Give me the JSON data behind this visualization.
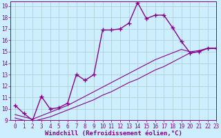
{
  "background_color": "#cceeff",
  "grid_color": "#aacccc",
  "line_color": "#880088",
  "xlim": [
    -0.5,
    23
  ],
  "ylim": [
    9,
    19.4
  ],
  "yticks": [
    9,
    10,
    11,
    12,
    13,
    14,
    15,
    16,
    17,
    18,
    19
  ],
  "xticks": [
    0,
    1,
    2,
    3,
    4,
    5,
    6,
    7,
    8,
    9,
    10,
    11,
    12,
    13,
    14,
    15,
    16,
    17,
    18,
    19,
    20,
    21,
    22,
    23
  ],
  "xlabel": "Windchill (Refroidissement éolien,°C)",
  "series": [
    {
      "x": [
        0,
        1,
        2,
        3,
        4,
        5,
        6,
        7,
        8,
        9,
        10,
        11,
        12,
        13,
        14,
        15,
        16,
        17,
        18,
        19,
        20,
        21,
        22,
        23
      ],
      "y": [
        10.3,
        9.6,
        9.0,
        11.1,
        10.0,
        10.1,
        10.5,
        13.0,
        12.5,
        13.0,
        16.9,
        16.9,
        17.0,
        17.5,
        19.3,
        17.9,
        18.2,
        18.2,
        17.1,
        15.9,
        14.9,
        15.0,
        15.3,
        15.3
      ],
      "marker": "+",
      "markersize": 4,
      "linewidth": 1.0
    },
    {
      "x": [
        0,
        1,
        2,
        3,
        4,
        5,
        6,
        7,
        8,
        9,
        10,
        11,
        12,
        13,
        14,
        15,
        16,
        17,
        18,
        19,
        20,
        21,
        22,
        23
      ],
      "y": [
        9.5,
        9.3,
        9.1,
        9.4,
        9.7,
        10.0,
        10.3,
        10.7,
        11.1,
        11.5,
        11.9,
        12.3,
        12.7,
        13.1,
        13.5,
        13.9,
        14.3,
        14.6,
        14.9,
        15.2,
        15.0,
        15.1,
        15.3,
        15.3
      ],
      "marker": null,
      "markersize": 0,
      "linewidth": 0.8
    },
    {
      "x": [
        0,
        1,
        2,
        3,
        4,
        5,
        6,
        7,
        8,
        9,
        10,
        11,
        12,
        13,
        14,
        15,
        16,
        17,
        18,
        19,
        20,
        21,
        22,
        23
      ],
      "y": [
        9.2,
        9.0,
        8.9,
        9.1,
        9.3,
        9.6,
        9.9,
        10.2,
        10.5,
        10.8,
        11.2,
        11.5,
        11.9,
        12.3,
        12.6,
        13.0,
        13.4,
        13.7,
        14.1,
        14.5,
        14.9,
        15.0,
        15.3,
        15.3
      ],
      "marker": null,
      "markersize": 0,
      "linewidth": 0.8
    }
  ],
  "tick_fontsize": 5.5,
  "label_fontsize": 6.5,
  "font_family": "monospace"
}
